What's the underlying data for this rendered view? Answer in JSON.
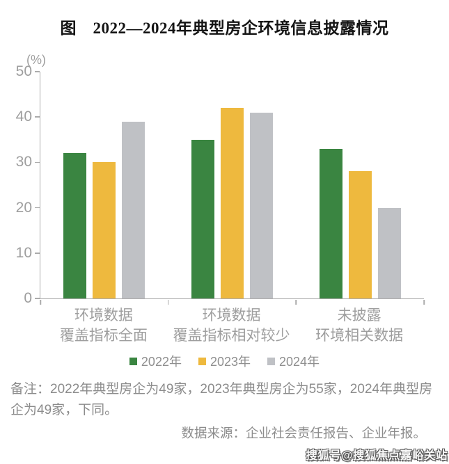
{
  "title": "图　2022—2024年典型房企环境信息披露情况",
  "chart_data": {
    "type": "bar",
    "unit_label": "(%)",
    "categories": [
      [
        "环境数据",
        "覆盖指标全面"
      ],
      [
        "环境数据",
        "覆盖指标相对较少"
      ],
      [
        "未披露",
        "环境相关数据"
      ]
    ],
    "series": [
      {
        "name": "2022年",
        "color": "#3a8541",
        "values": [
          32,
          35,
          33
        ]
      },
      {
        "name": "2023年",
        "color": "#eeb93e",
        "values": [
          30,
          42,
          28
        ]
      },
      {
        "name": "2024年",
        "color": "#bfc1c5",
        "values": [
          39,
          41,
          20
        ]
      }
    ],
    "ylim": [
      0,
      50
    ],
    "yticks": [
      0,
      10,
      20,
      30,
      40,
      50
    ],
    "grid": false,
    "legend_position": "bottom",
    "axis_color": "#ababab",
    "tick_label_color": "#9e9e9e"
  },
  "note": "备注：2022年典型房企为49家，2023年典型房企为55家，2024年典型房企为49家，下同。",
  "source": "数据来源：企业社会责任报告、企业年报。",
  "watermark": "搜狐号@搜狐焦点嘉峪关站"
}
